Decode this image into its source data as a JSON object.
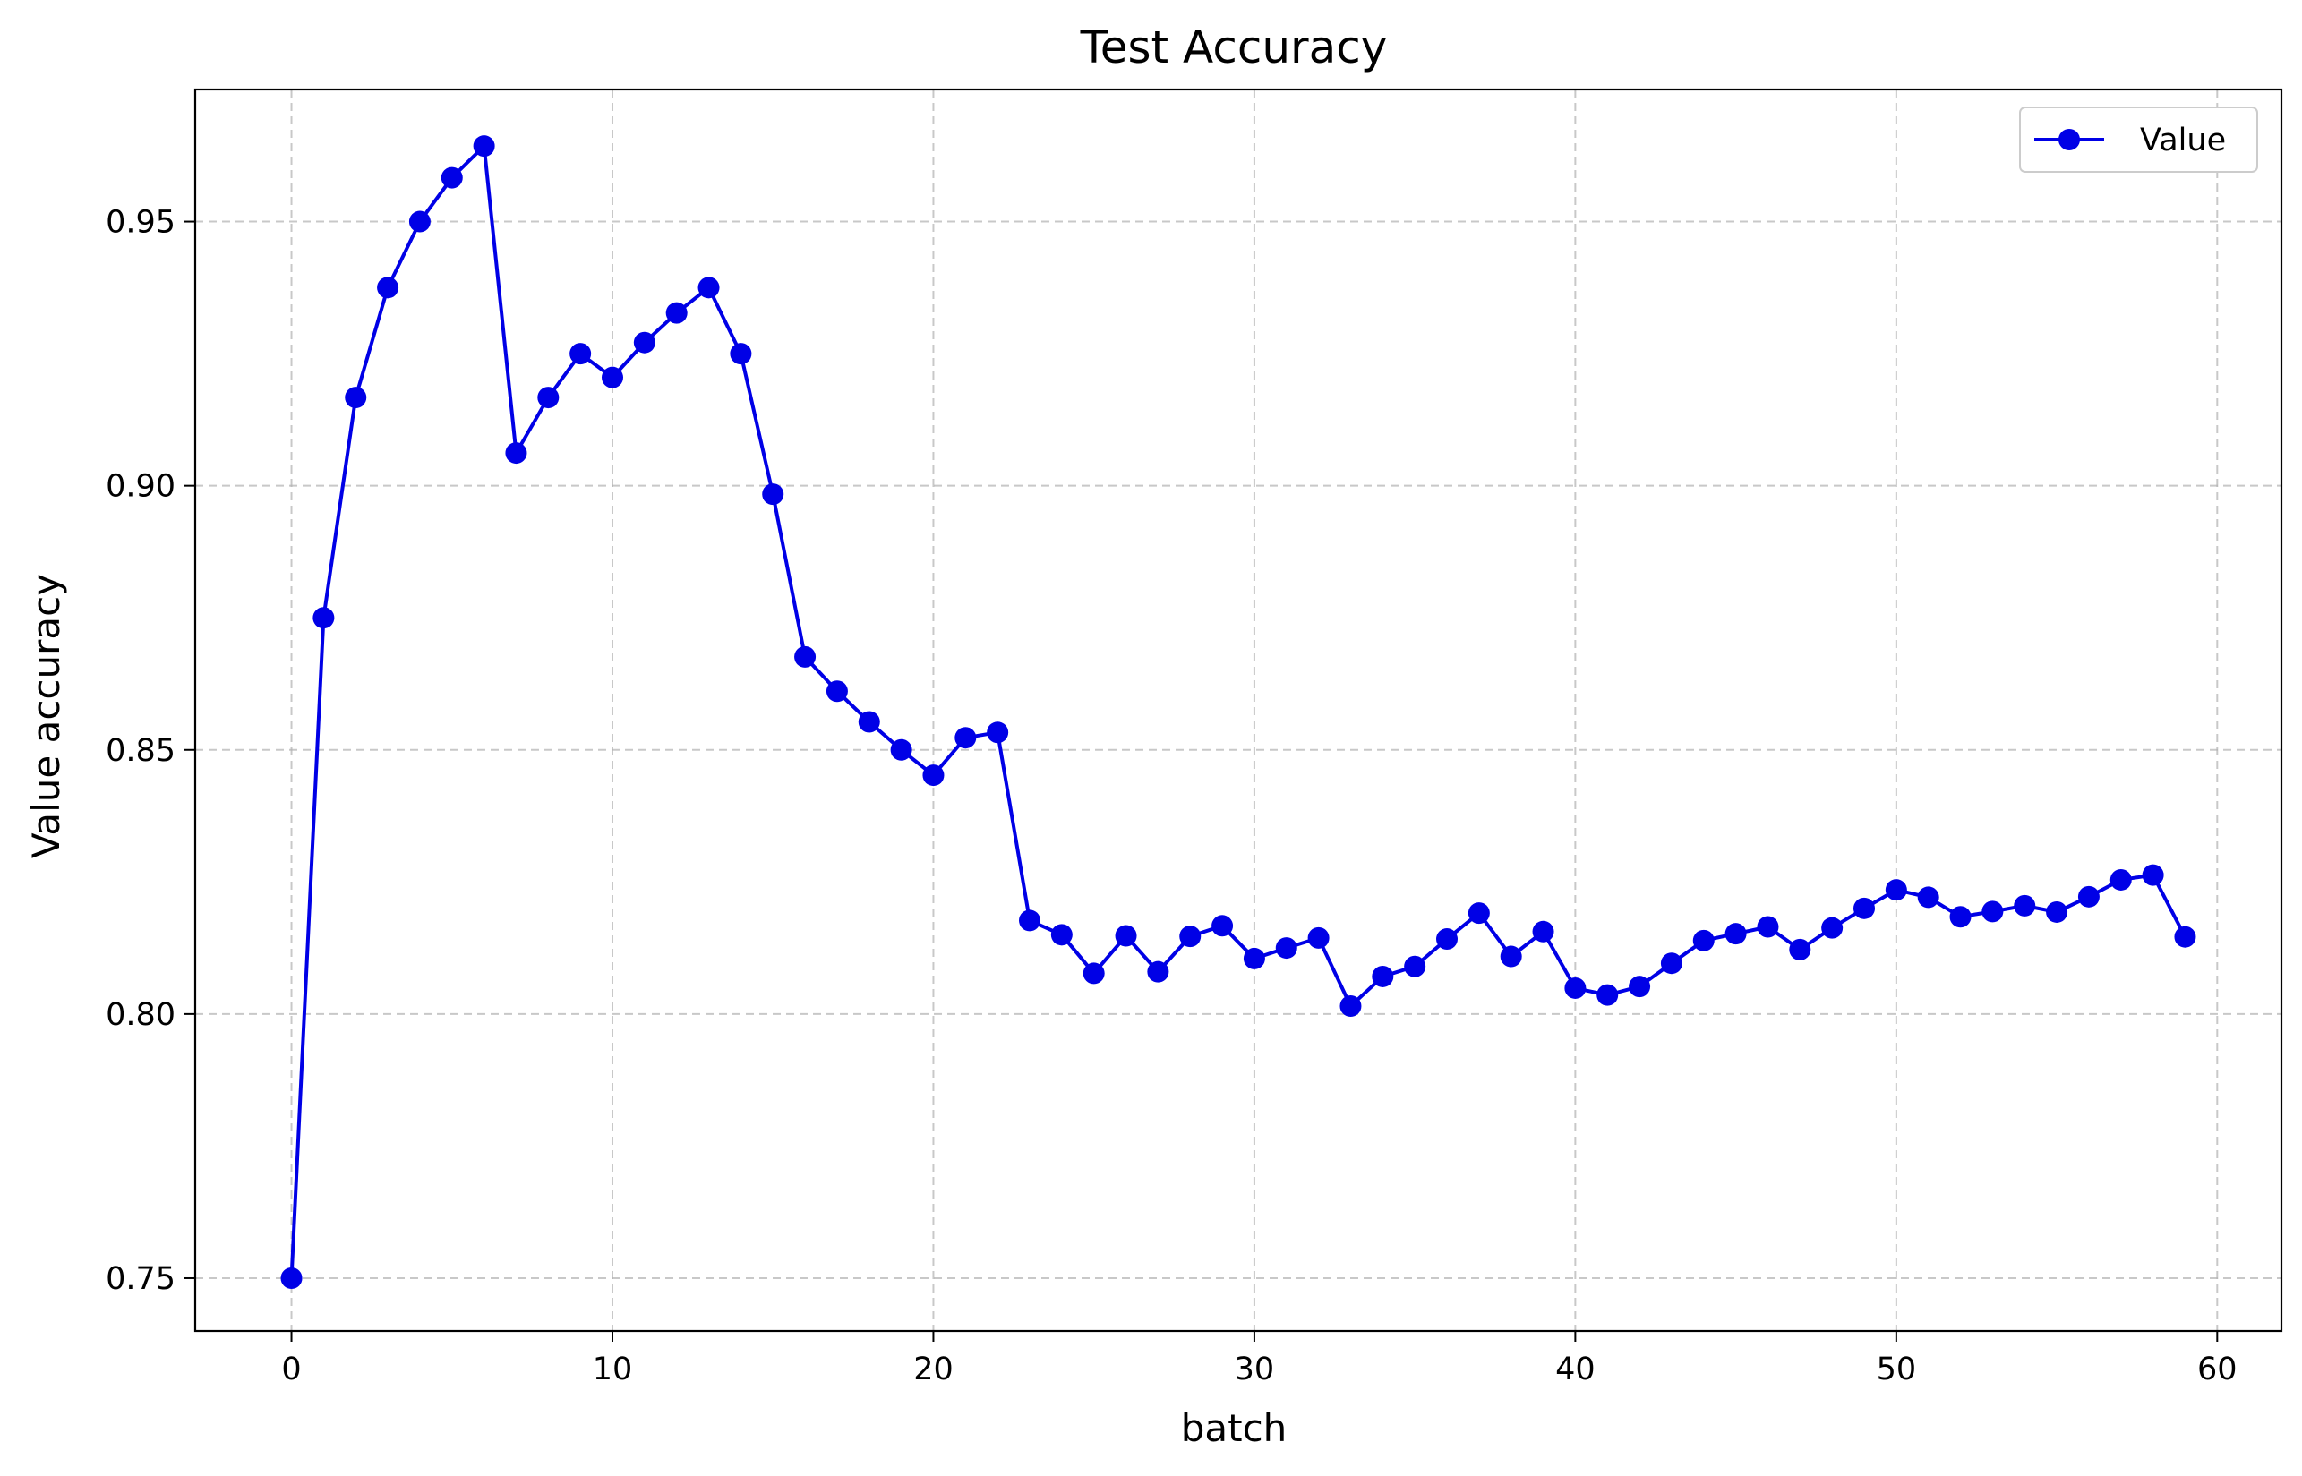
{
  "chart_data": {
    "type": "line",
    "title": "Test Accuracy",
    "xlabel": "batch",
    "ylabel": "Value accuracy",
    "xlim": [
      -3,
      62
    ],
    "ylim": [
      0.74,
      0.975
    ],
    "xticks": [
      0,
      10,
      20,
      30,
      40,
      50,
      60
    ],
    "yticks": [
      0.75,
      0.8,
      0.85,
      0.9,
      0.95
    ],
    "ytick_labels": [
      "0.75",
      "0.80",
      "0.85",
      "0.90",
      "0.95"
    ],
    "grid": true,
    "legend": {
      "position": "top-right",
      "entries": [
        "Value"
      ]
    },
    "series_color": "#0000e6",
    "series": [
      {
        "name": "Value",
        "x": [
          0,
          1,
          2,
          3,
          4,
          5,
          6,
          7,
          8,
          9,
          10,
          11,
          12,
          13,
          14,
          15,
          16,
          17,
          18,
          19,
          20,
          21,
          22,
          23,
          24,
          25,
          26,
          27,
          28,
          29,
          30,
          31,
          32,
          33,
          34,
          35,
          36,
          37,
          38,
          39,
          40,
          41,
          42,
          43,
          44,
          45,
          46,
          47,
          48,
          49,
          50,
          51,
          52,
          53,
          54,
          55,
          56,
          57,
          58,
          59
        ],
        "values": [
          0.75,
          0.875,
          0.9167,
          0.9375,
          0.95,
          0.9583,
          0.9643,
          0.9062,
          0.9167,
          0.925,
          0.9205,
          0.9271,
          0.9327,
          0.9375,
          0.925,
          0.8984,
          0.8676,
          0.8611,
          0.8553,
          0.85,
          0.8452,
          0.8523,
          0.8533,
          0.8177,
          0.815,
          0.8077,
          0.8148,
          0.808,
          0.8147,
          0.8167,
          0.8105,
          0.8125,
          0.8144,
          0.8015,
          0.8071,
          0.809,
          0.8142,
          0.8191,
          0.8109,
          0.8156,
          0.8049,
          0.8036,
          0.8052,
          0.8096,
          0.8139,
          0.8152,
          0.8165,
          0.8122,
          0.8163,
          0.82,
          0.8235,
          0.8221,
          0.8184,
          0.8194,
          0.8205,
          0.8193,
          0.8222,
          0.8254,
          0.8263,
          0.8146
        ]
      }
    ]
  }
}
